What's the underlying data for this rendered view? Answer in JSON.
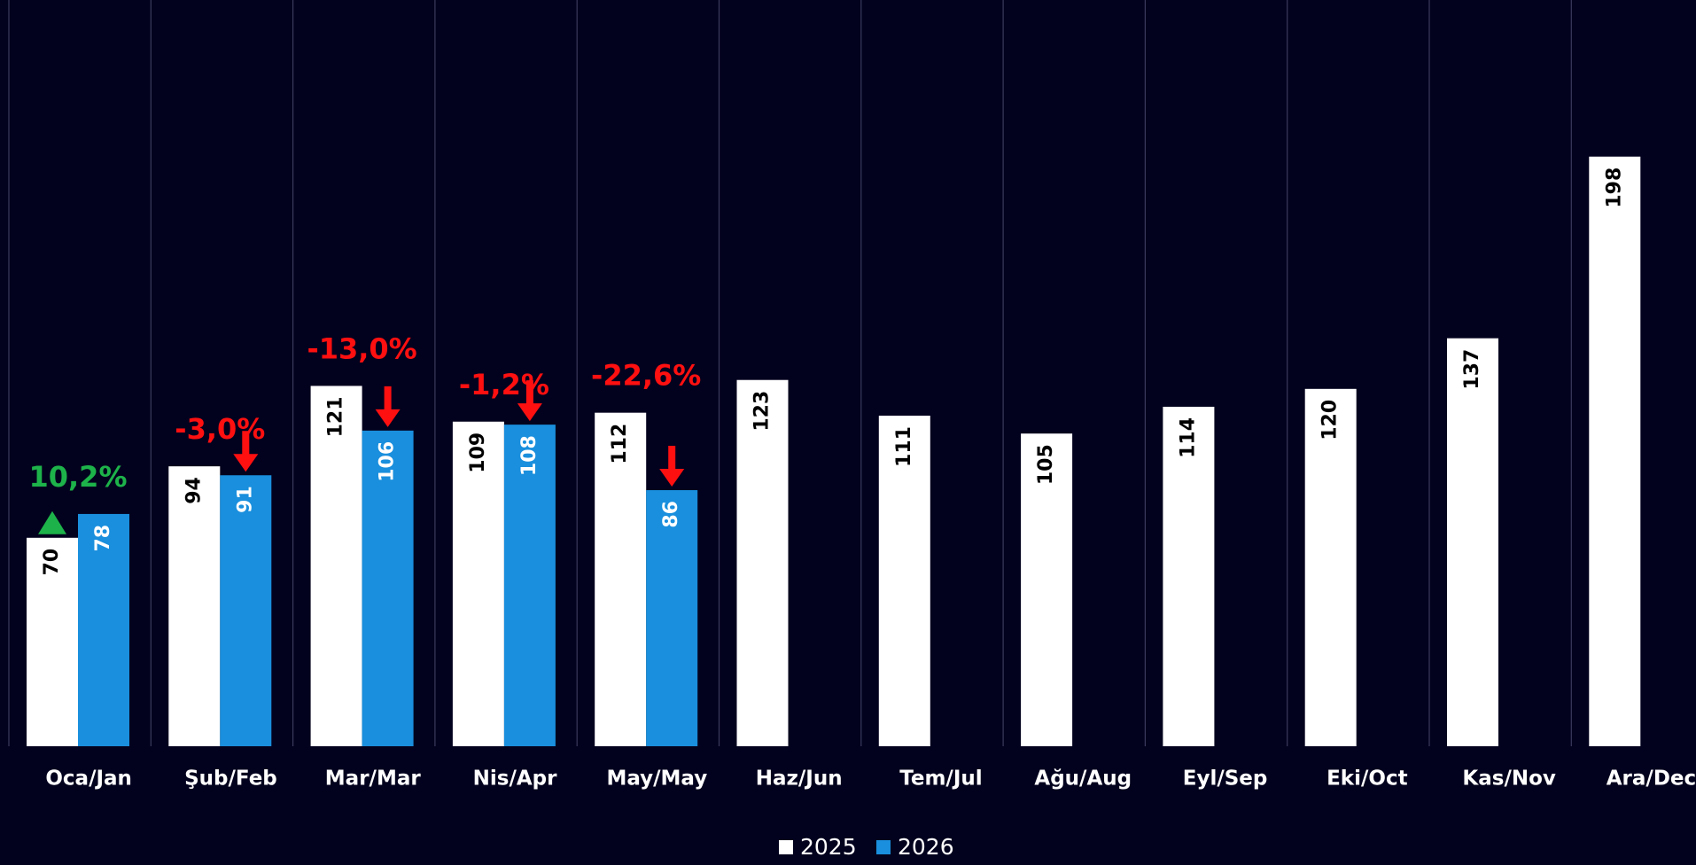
{
  "chart_data": {
    "type": "bar",
    "categories": [
      "Oca/Jan",
      "Şub/Feb",
      "Mar/Mar",
      "Nis/Apr",
      "May/May",
      "Haz/Jun",
      "Tem/Jul",
      "Ağu/Aug",
      "Eyl/Sep",
      "Eki/Oct",
      "Kas/Nov",
      "Ara/Dec"
    ],
    "series": [
      {
        "name": "2025",
        "color": "#ffffff",
        "values": [
          70,
          94,
          121,
          109,
          112,
          123,
          111,
          105,
          114,
          120,
          137,
          198
        ]
      },
      {
        "name": "2026",
        "color": "#1a8fdd",
        "values": [
          78,
          91,
          106,
          108,
          86,
          null,
          null,
          null,
          null,
          null,
          null,
          null
        ]
      }
    ],
    "annotations": [
      {
        "text": "10,2%",
        "color": "#1db34a"
      },
      {
        "text": "-3,0%",
        "color": "#ff1010"
      },
      {
        "text": "-13,0%",
        "color": "#ff1010"
      },
      {
        "text": "-1,2%",
        "color": "#ff1010"
      },
      {
        "text": "-22,6%",
        "color": "#ff1010"
      }
    ],
    "ylim": [
      0,
      250
    ],
    "legend": "bottom"
  }
}
